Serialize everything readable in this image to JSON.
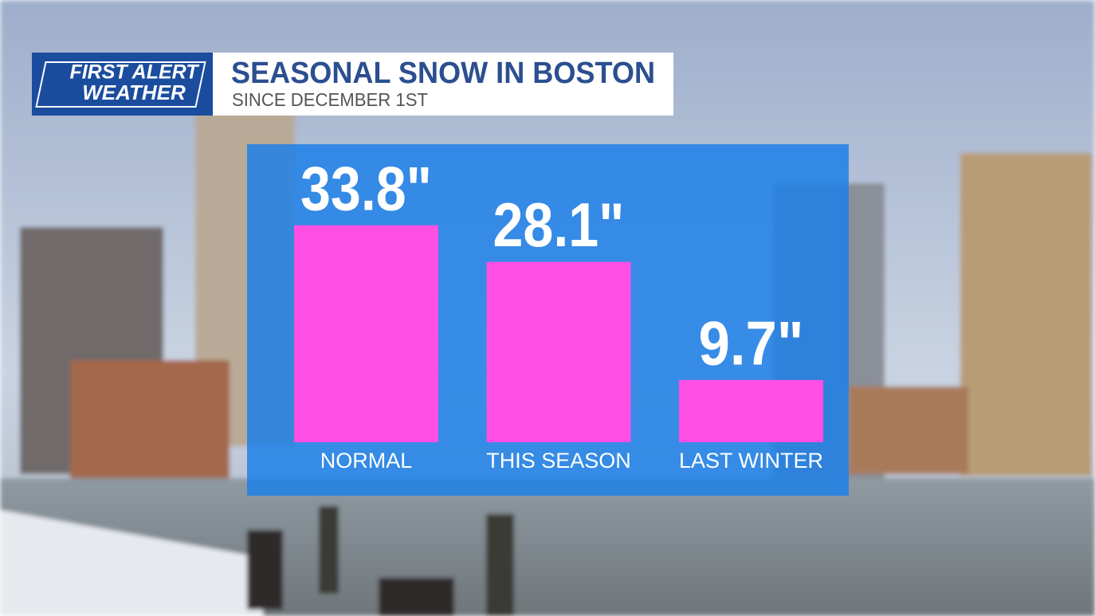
{
  "logo": {
    "line1": "FIRST ALERT",
    "line2": "WEATHER"
  },
  "chart_data": {
    "type": "bar",
    "title": "SEASONAL SNOW IN BOSTON",
    "subtitle": "SINCE DECEMBER 1ST",
    "categories": [
      "NORMAL",
      "THIS SEASON",
      "LAST WINTER"
    ],
    "values": [
      33.8,
      28.1,
      9.7
    ],
    "value_labels": [
      "33.8\"",
      "28.1\"",
      "9.7\""
    ],
    "color": "#ff4fe4",
    "ylim": [
      0,
      36
    ]
  }
}
